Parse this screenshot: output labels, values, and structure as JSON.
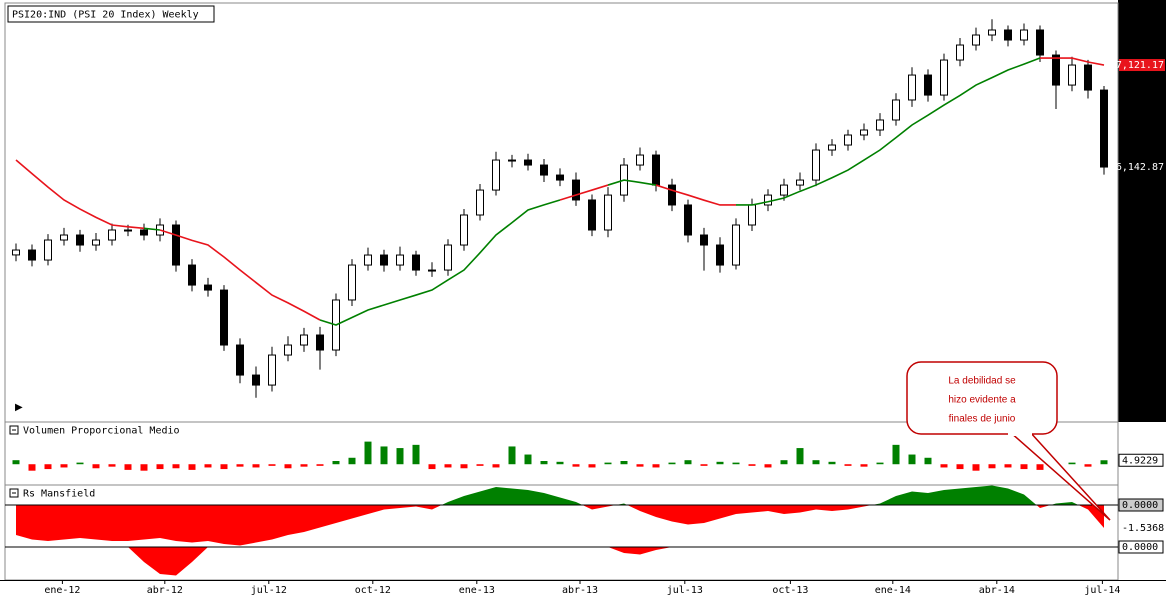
{
  "chart_data": [
    {
      "type": "candlestick",
      "title": "PSI20:IND (PSI 20 Index) Weekly",
      "open": [
        5300,
        5347,
        5251,
        5443,
        5491,
        5395,
        5443,
        5539,
        5539,
        5491,
        5587,
        5203,
        5011,
        4963,
        4436,
        4148,
        4052,
        4340,
        4436,
        4532,
        4388,
        4868,
        5203,
        5299,
        5203,
        5299,
        5155,
        5155,
        5395,
        5683,
        5922,
        6210,
        6210,
        6162,
        6066,
        6018,
        5827,
        5539,
        5874,
        6162,
        6258,
        5970,
        5779,
        5491,
        5395,
        5203,
        5587,
        5779,
        5874,
        5970,
        6018,
        6306,
        6354,
        6450,
        6498,
        6594,
        6786,
        7025,
        6833,
        7169,
        7313,
        7409,
        7457,
        7361,
        7457,
        7217,
        6929,
        7121,
        6881
      ],
      "high": [
        5410,
        5400,
        5500,
        5560,
        5540,
        5510,
        5600,
        5590,
        5600,
        5650,
        5630,
        5260,
        5080,
        5010,
        4500,
        4230,
        4420,
        4520,
        4600,
        4610,
        4930,
        5260,
        5370,
        5350,
        5380,
        5340,
        5230,
        5450,
        5740,
        5980,
        6290,
        6260,
        6270,
        6220,
        6130,
        6090,
        5880,
        5950,
        6230,
        6330,
        6300,
        6030,
        5830,
        5560,
        5470,
        5650,
        5840,
        5930,
        6030,
        6090,
        6370,
        6410,
        6500,
        6560,
        6660,
        6850,
        7100,
        7080,
        7230,
        7380,
        7480,
        7560,
        7500,
        7520,
        7500,
        7260,
        7200,
        7170,
        6920
      ],
      "low": [
        5240,
        5190,
        5200,
        5390,
        5330,
        5340,
        5390,
        5480,
        5440,
        5430,
        5140,
        4950,
        4900,
        4380,
        4070,
        3930,
        3990,
        4280,
        4370,
        4200,
        4330,
        4810,
        5150,
        5140,
        5150,
        5100,
        5090,
        5100,
        5340,
        5630,
        5870,
        6140,
        6110,
        6000,
        5960,
        5770,
        5480,
        5470,
        5810,
        6110,
        5910,
        5720,
        5420,
        5150,
        5130,
        5160,
        5530,
        5720,
        5820,
        5920,
        5960,
        6250,
        6300,
        6400,
        6440,
        6540,
        6720,
        6770,
        6780,
        7110,
        7260,
        7350,
        7300,
        7310,
        7150,
        6700,
        6870,
        6800,
        6070
      ],
      "close": [
        5347,
        5251,
        5443,
        5491,
        5395,
        5443,
        5539,
        5539,
        5491,
        5587,
        5203,
        5011,
        4963,
        4436,
        4148,
        4052,
        4340,
        4436,
        4532,
        4388,
        4868,
        5203,
        5299,
        5203,
        5299,
        5155,
        5155,
        5395,
        5683,
        5922,
        6210,
        6210,
        6162,
        6066,
        6018,
        5827,
        5539,
        5874,
        6162,
        6258,
        5970,
        5779,
        5491,
        5395,
        5203,
        5587,
        5779,
        5874,
        5970,
        6018,
        6306,
        6354,
        6450,
        6498,
        6594,
        6786,
        7025,
        6833,
        7169,
        7313,
        7409,
        7457,
        7361,
        7457,
        7217,
        6929,
        7121,
        6881,
        6142.87
      ],
      "up_color": "#ffffff",
      "down_color": "#000000",
      "ma": {
        "values": [
          6210,
          6080,
          5950,
          5827,
          5740,
          5660,
          5587,
          5570,
          5555,
          5539,
          5490,
          5440,
          5395,
          5280,
          5155,
          5035,
          4915,
          4840,
          4760,
          4676,
          4628,
          4700,
          4772,
          4820,
          4868,
          4915,
          4963,
          5060,
          5155,
          5320,
          5491,
          5610,
          5731,
          5780,
          5827,
          5875,
          5922,
          5970,
          6018,
          5995,
          5970,
          5920,
          5874,
          5825,
          5779,
          5779,
          5779,
          5810,
          5846,
          5910,
          5970,
          6040,
          6114,
          6210,
          6306,
          6425,
          6546,
          6640,
          6737,
          6830,
          6929,
          7000,
          7073,
          7130,
          7188,
          7188,
          7188,
          7150,
          7121.17
        ],
        "above_color": "#e8141c",
        "below_color": "#008000"
      },
      "xlim": [
        0,
        69.5
      ],
      "ylim": [
        3717,
        7716
      ],
      "yticks": [
        {
          "value": 7121.17,
          "label": "7,121.17"
        },
        {
          "value": 6142.87,
          "label": "6,142.87"
        }
      ],
      "annotation": {
        "lines": [
          "La debilidad se",
          "hizo evidente a",
          "finales de junio"
        ]
      }
    },
    {
      "type": "bar",
      "title": "Volumen Proporcional Medio",
      "values": [
        5,
        -8,
        -6,
        -4,
        2,
        -5,
        -3,
        -7,
        -8,
        -6,
        -5,
        -7,
        -4,
        -6,
        -3,
        -4,
        -2,
        -5,
        -3,
        -2,
        4,
        8,
        28,
        22,
        20,
        24,
        -6,
        -4,
        -5,
        -2,
        -4,
        22,
        12,
        4,
        3,
        -3,
        -4,
        2,
        4,
        -3,
        -4,
        2,
        5,
        -2,
        3,
        2,
        -2,
        -4,
        5,
        20,
        5,
        3,
        -2,
        -3,
        2,
        24,
        12,
        8,
        -4,
        -6,
        -8,
        -5,
        -4,
        -6,
        -7,
        -5,
        2,
        -3,
        4.9229
      ],
      "positive_color": "#008000",
      "negative_color": "#ff0000",
      "xlim": [
        0,
        69.5
      ],
      "ylim": [
        -22,
        30
      ],
      "yticks": [
        4.9229
      ]
    },
    {
      "type": "area",
      "title": "Rs Mansfield",
      "series": [
        {
          "values": [
            -2.0,
            -2.3,
            -2.4,
            -2.3,
            -2.2,
            -2.3,
            -2.4,
            -2.4,
            -2.3,
            -2.2,
            -2.4,
            -2.5,
            -2.4,
            -2.6,
            -2.7,
            -2.5,
            -2.3,
            -2.0,
            -1.8,
            -1.5,
            -1.2,
            -0.9,
            -0.6,
            -0.3,
            -0.2,
            -0.1,
            -0.3,
            0.2,
            0.6,
            0.9,
            1.2,
            1.1,
            1.0,
            0.8,
            0.5,
            0.2,
            -0.3,
            -0.1,
            0.1,
            -0.4,
            -0.8,
            -1.1,
            -1.3,
            -1.2,
            -0.9,
            -0.6,
            -0.5,
            -0.4,
            -0.6,
            -0.5,
            -0.3,
            -0.4,
            -0.3,
            -0.1,
            0.1,
            0.6,
            0.9,
            0.8,
            1.0,
            1.1,
            1.2,
            1.3,
            1.1,
            0.7,
            -0.2,
            0.1,
            0.2,
            -0.3,
            -1.5368
          ]
        },
        {
          "values": [
            0,
            0,
            0,
            0,
            0,
            0,
            0,
            0,
            -0.5,
            -0.9,
            -0.95,
            -0.5,
            0,
            0,
            0,
            0,
            0,
            0,
            0,
            0,
            0,
            0,
            0,
            0,
            0,
            0,
            0,
            0,
            0,
            0,
            0,
            0,
            0,
            0,
            0,
            0,
            0,
            0,
            -0.2,
            -0.25,
            -0.1,
            0,
            0,
            0,
            0,
            0,
            0,
            0,
            0,
            0,
            0,
            0,
            0,
            0,
            0,
            0,
            0,
            0,
            0,
            0,
            0,
            0,
            0,
            0,
            0,
            0,
            0,
            0,
            0
          ],
          "axis": "y2"
        }
      ],
      "positive_color": "#008000",
      "negative_color": "#ff0000",
      "xlim": [
        0,
        69.5
      ],
      "ylim": [
        -5.0,
        1.2
      ],
      "yticks": [
        {
          "value": 0,
          "label": "0.0000"
        },
        {
          "value": -1.5368,
          "label": "-1.5368"
        }
      ],
      "y2lim": [
        -1.1,
        2.0
      ],
      "y2ticks": [
        {
          "value": 0,
          "label": "0.0000"
        }
      ],
      "xticks": [
        {
          "value": 3.4,
          "label": "ene-12"
        },
        {
          "value": 9.8,
          "label": "abr-12"
        },
        {
          "value": 16.3,
          "label": "jul-12"
        },
        {
          "value": 22.8,
          "label": "oct-12"
        },
        {
          "value": 29.3,
          "label": "ene-13"
        },
        {
          "value": 35.75,
          "label": "abr-13"
        },
        {
          "value": 42.3,
          "label": "jul-13"
        },
        {
          "value": 48.9,
          "label": "oct-13"
        },
        {
          "value": 55.3,
          "label": "ene-14"
        },
        {
          "value": 61.8,
          "label": "abr-14"
        },
        {
          "value": 68.4,
          "label": "jul-14"
        }
      ]
    }
  ]
}
